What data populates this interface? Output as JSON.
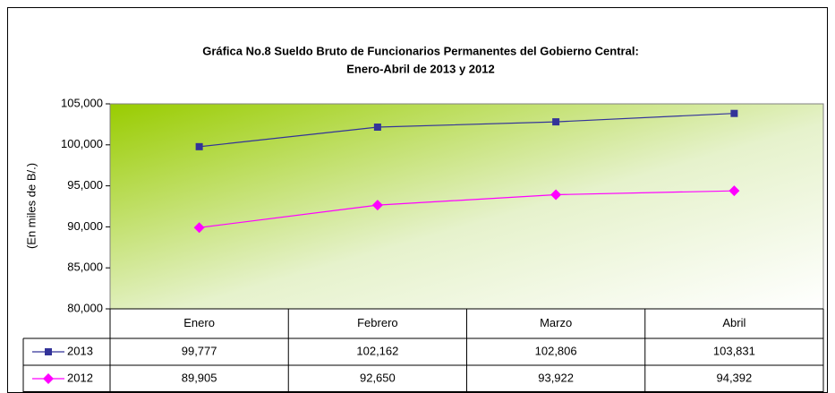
{
  "chart_data": {
    "type": "line",
    "title": [
      "Gráfica No.8 Sueldo Bruto de Funcionarios Permanentes del Gobierno Central:",
      "Enero-Abril de 2013 y 2012"
    ],
    "y_label": "(En miles de B/.)",
    "categories": [
      "Enero",
      "Febrero",
      "Marzo",
      "Abril"
    ],
    "series": [
      {
        "name": "2013",
        "color": "#333399",
        "marker": "square",
        "values": [
          99777,
          102162,
          102806,
          103831
        ],
        "value_labels": [
          "99,777",
          "102,162",
          "102,806",
          "103,831"
        ]
      },
      {
        "name": "2012",
        "color": "#ff00ff",
        "marker": "diamond",
        "values": [
          89905,
          92650,
          93922,
          94392
        ],
        "value_labels": [
          "89,905",
          "92,650",
          "93,922",
          "94,392"
        ]
      }
    ],
    "ylim": [
      80000,
      105000
    ],
    "yticks": [
      {
        "value": 80000,
        "label": "80,000"
      },
      {
        "value": 85000,
        "label": "85,000"
      },
      {
        "value": 90000,
        "label": "90,000"
      },
      {
        "value": 95000,
        "label": "95,000"
      },
      {
        "value": 100000,
        "label": "100,000"
      },
      {
        "value": 105000,
        "label": "105,000"
      }
    ],
    "grid": false
  }
}
